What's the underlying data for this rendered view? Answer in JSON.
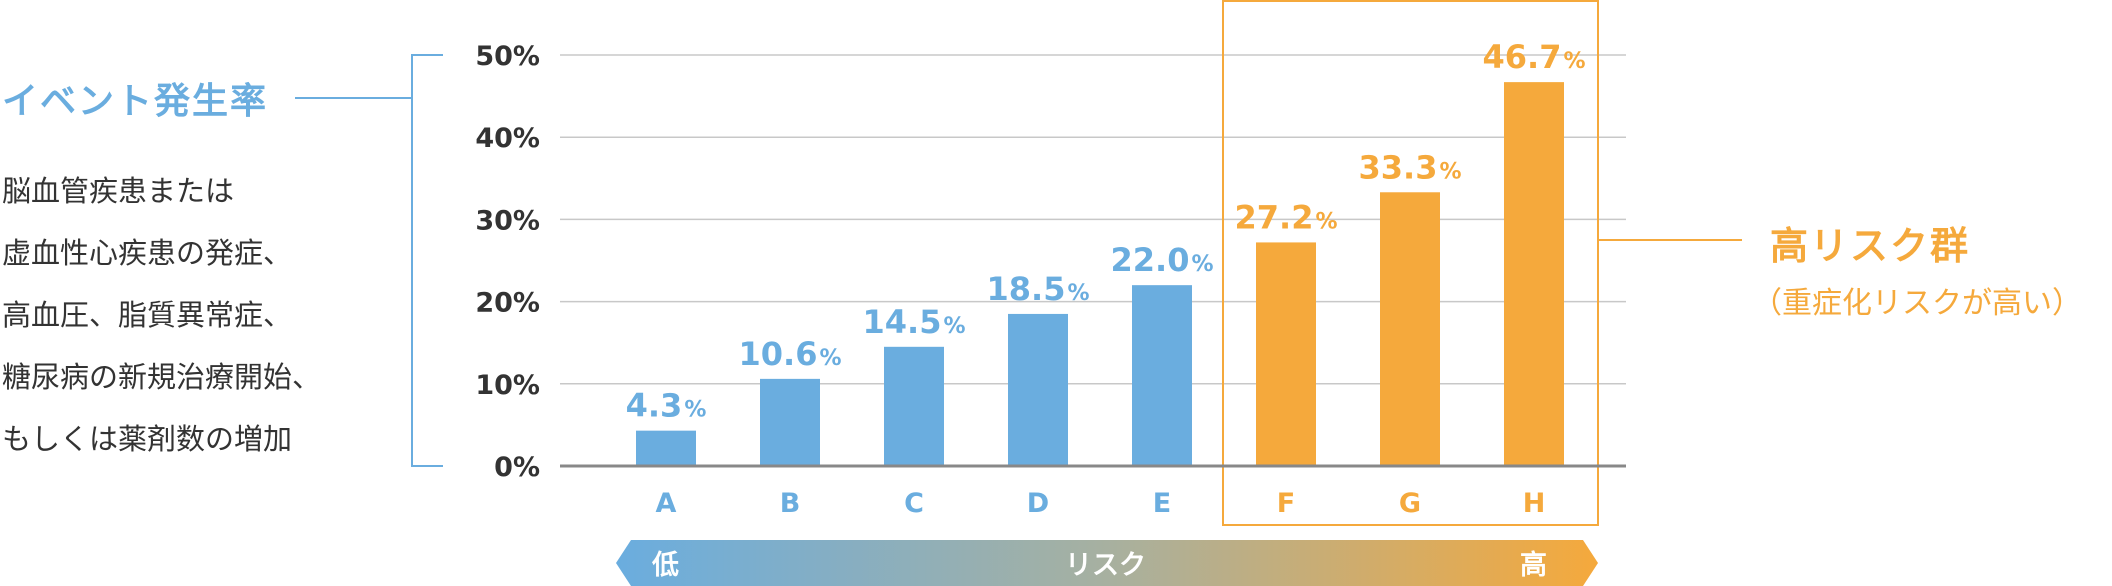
{
  "legend": {
    "title": "イベント発生率",
    "description": [
      "脳血管疾患または",
      "虚血性心疾患の発症、",
      "高血圧、脂質異常症、",
      "糖尿病の新規治療開始、",
      "もしくは薬剤数の増加"
    ]
  },
  "high_risk": {
    "title": "高リスク群",
    "subtitle": "（重症化リスクが高い）"
  },
  "risk_arrow": {
    "low": "低",
    "label": "リスク",
    "high": "高"
  },
  "colors": {
    "blue": "#6aaddf",
    "orange": "#f5a93c",
    "grid": "#c8c8c8",
    "axis": "#888888",
    "tick_text": "#333333"
  },
  "chart_data": {
    "type": "bar",
    "categories": [
      "A",
      "B",
      "C",
      "D",
      "E",
      "F",
      "G",
      "H"
    ],
    "values": [
      4.3,
      10.6,
      14.5,
      18.5,
      22.0,
      27.2,
      33.3,
      46.7
    ],
    "value_labels": [
      "4.3",
      "10.6",
      "14.5",
      "18.5",
      "22.0",
      "27.2",
      "33.3",
      "46.7"
    ],
    "value_unit": "%",
    "high_risk_categories": [
      "F",
      "G",
      "H"
    ],
    "yticks": [
      0,
      10,
      20,
      30,
      40,
      50
    ],
    "ytick_labels": [
      "0%",
      "10%",
      "20%",
      "30%",
      "40%",
      "50%"
    ],
    "ylim": [
      0,
      50
    ],
    "grid": true
  }
}
